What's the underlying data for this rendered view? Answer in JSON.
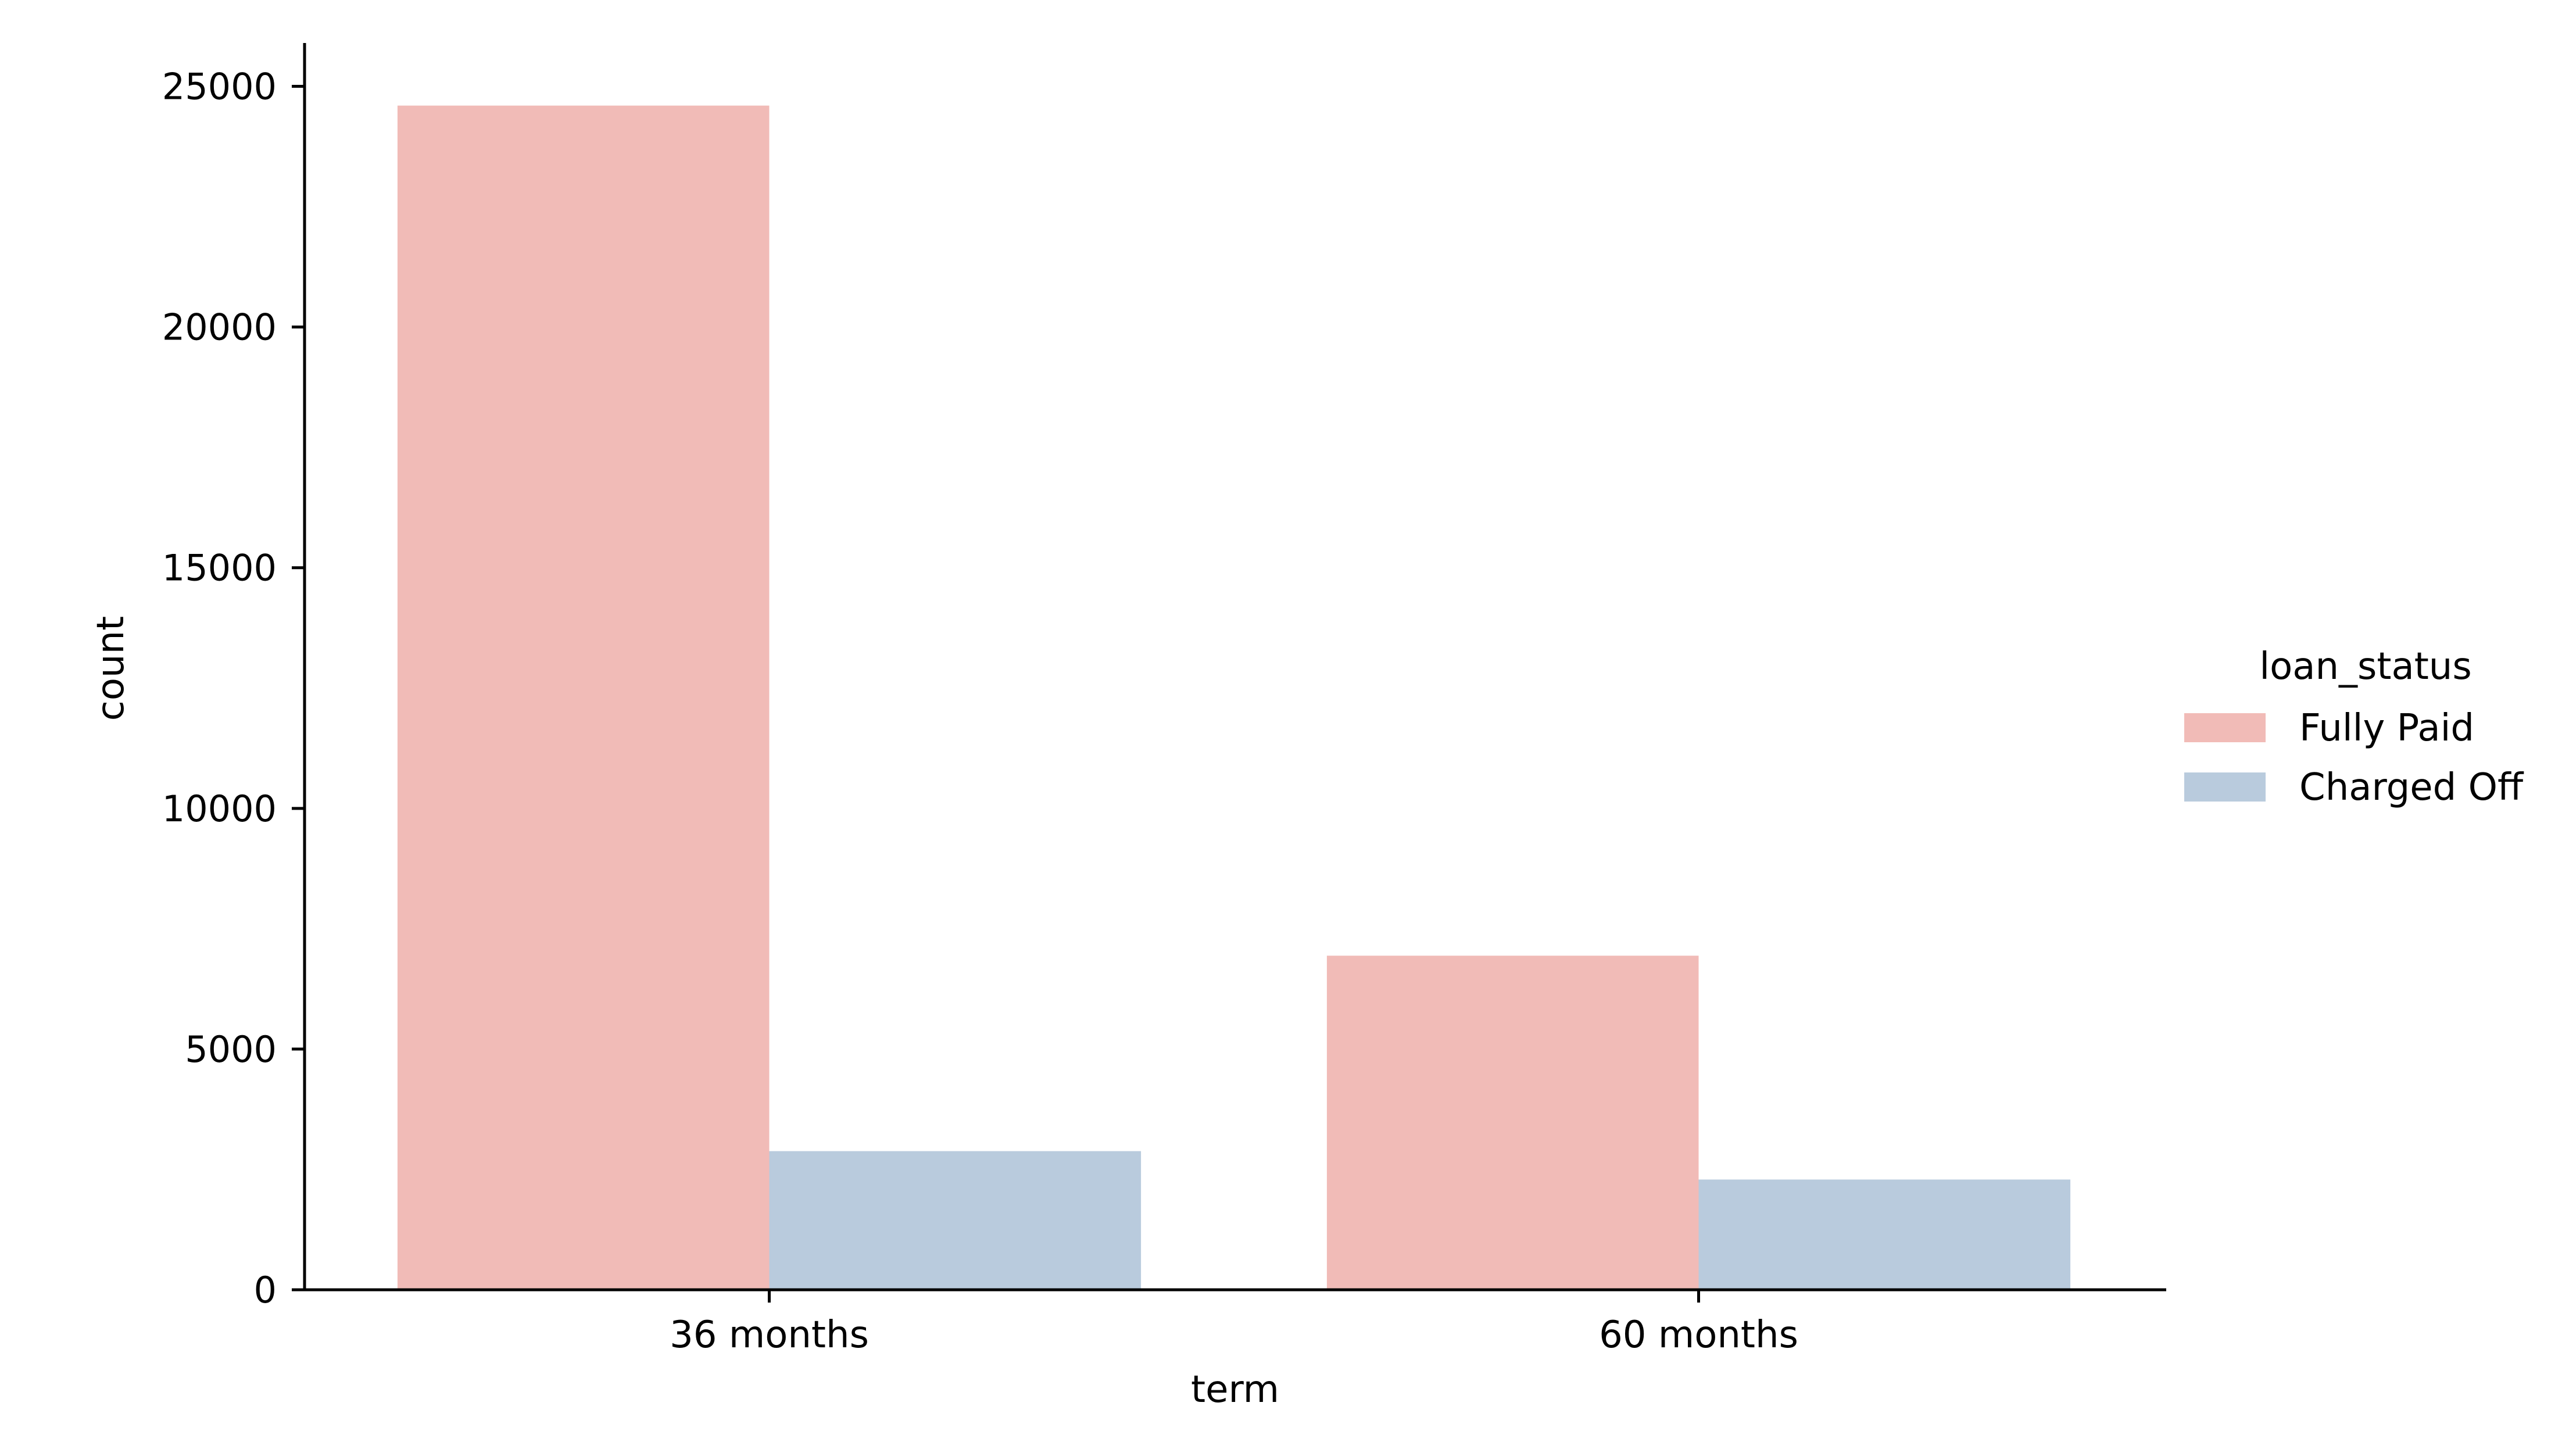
{
  "chart_data": {
    "type": "bar",
    "categories": [
      "36 months",
      "60 months"
    ],
    "series": [
      {
        "name": "Fully Paid",
        "values": [
          24600,
          6940
        ],
        "color": "#f1bbb7"
      },
      {
        "name": "Charged Off",
        "values": [
          2880,
          2290
        ],
        "color": "#b9cbdd"
      }
    ],
    "title": "",
    "xlabel": "term",
    "ylabel": "count",
    "ylim": [
      0,
      25900
    ],
    "yticks": [
      0,
      5000,
      10000,
      15000,
      20000,
      25000
    ],
    "ytick_labels": [
      "0",
      "5000",
      "10000",
      "15000",
      "20000",
      "25000"
    ],
    "grid": false,
    "legend": {
      "title": "loan_status",
      "placement": "right",
      "entries": [
        "Fully Paid",
        "Charged Off"
      ]
    }
  }
}
